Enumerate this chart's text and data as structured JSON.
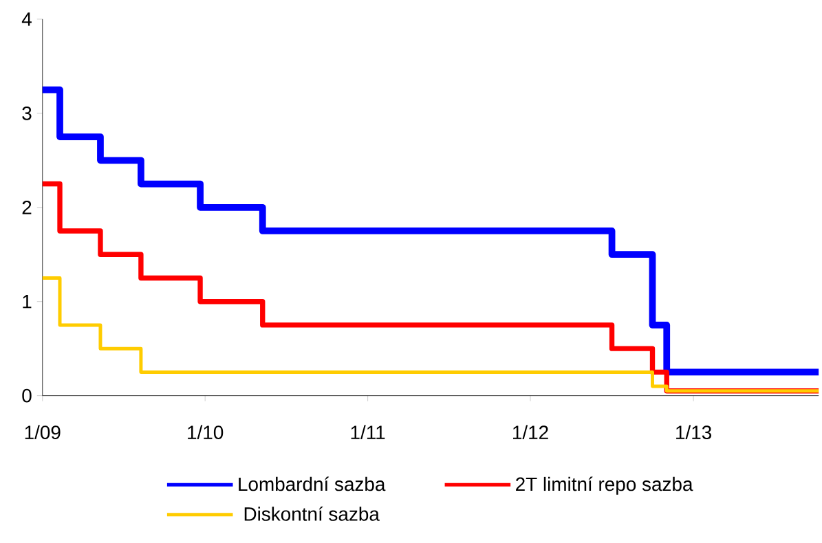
{
  "chart_data": {
    "type": "step",
    "xlim": [
      "2009-01-01",
      "2013-10-09"
    ],
    "xticks": [
      {
        "value": "2009-01-01",
        "label": "1/09"
      },
      {
        "value": "2010-01-01",
        "label": "1/10"
      },
      {
        "value": "2011-01-01",
        "label": "1/11"
      },
      {
        "value": "2012-01-01",
        "label": "1/12"
      },
      {
        "value": "2013-01-01",
        "label": "1/13"
      }
    ],
    "ylim": [
      0,
      4
    ],
    "yticks": [
      0,
      1,
      2,
      3,
      4
    ],
    "x": [
      "2009-01-01",
      "2009-02-09",
      "2009-05-11",
      "2009-08-10",
      "2009-12-21",
      "2010-05-10",
      "2012-07-02",
      "2012-10-01",
      "2012-11-02",
      "2013-10-09"
    ],
    "series": [
      {
        "name": "Lombardní sazba",
        "color": "#0000ff",
        "values": [
          3.25,
          2.75,
          2.5,
          2.25,
          2.0,
          1.75,
          1.5,
          0.75,
          0.25,
          0.25
        ]
      },
      {
        "name": "2T limitní repo sazba",
        "color": "#ff0000",
        "values": [
          2.25,
          1.75,
          1.5,
          1.25,
          1.0,
          0.75,
          0.5,
          0.25,
          0.05,
          0.05
        ]
      },
      {
        "name": "Diskontní sazba",
        "color": "#ffcc00",
        "values": [
          1.25,
          0.75,
          0.5,
          0.25,
          0.25,
          0.25,
          0.25,
          0.1,
          0.05,
          0.05
        ]
      }
    ],
    "legend": "bottom",
    "grid": false
  }
}
